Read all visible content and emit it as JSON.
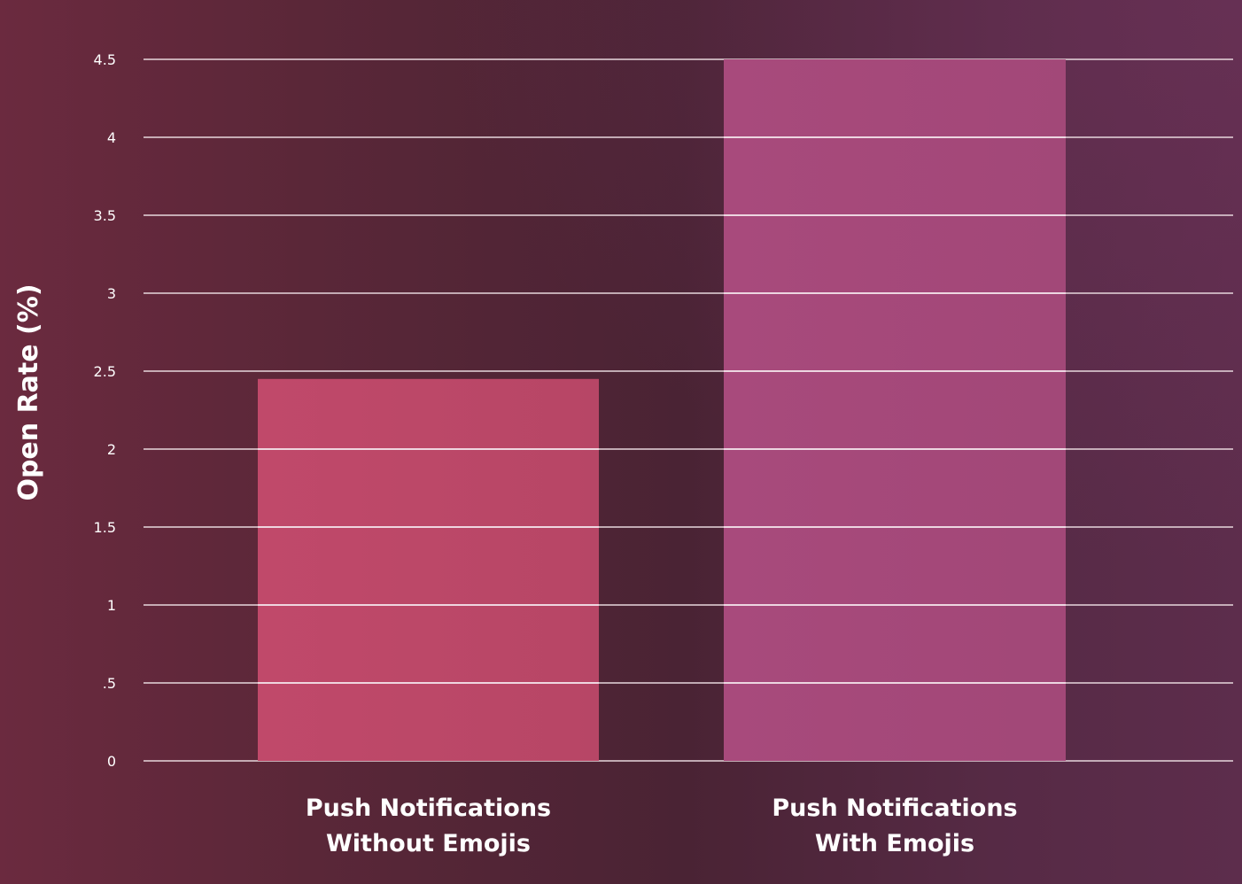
{
  "chart_data": {
    "type": "bar",
    "categories": [
      [
        "Push Notifications",
        "Without Emojis"
      ],
      [
        "Push Notifications",
        "With Emojis"
      ]
    ],
    "values": [
      2.45,
      4.5
    ],
    "ylabel": "Open Rate (%)",
    "ylim": [
      0,
      4.5
    ],
    "yticks": [
      {
        "value": 0,
        "label": "0"
      },
      {
        "value": 0.5,
        "label": ".5"
      },
      {
        "value": 1,
        "label": "1"
      },
      {
        "value": 1.5,
        "label": "1.5"
      },
      {
        "value": 2,
        "label": "2"
      },
      {
        "value": 2.5,
        "label": "2.5"
      },
      {
        "value": 3,
        "label": "3"
      },
      {
        "value": 3.5,
        "label": "3.5"
      },
      {
        "value": 4,
        "label": "4"
      },
      {
        "value": 4.5,
        "label": "4.5"
      }
    ],
    "grid": true,
    "bar_colors": [
      "#c0496a",
      "#a84a7c"
    ]
  }
}
